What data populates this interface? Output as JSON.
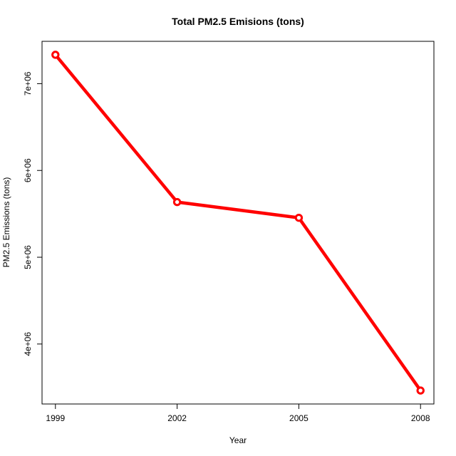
{
  "chart_data": {
    "type": "line",
    "title": "Total PM2.5 Emisions (tons)",
    "xlabel": "Year",
    "ylabel": "PM2.5 Emissions (tons)",
    "x": [
      1999,
      2002,
      2005,
      2008
    ],
    "series": [
      {
        "values": [
          7332967,
          5635780,
          5454703,
          3464206
        ],
        "color": "#ff0000"
      }
    ],
    "xticks": [
      1999,
      2002,
      2005,
      2008
    ],
    "xtick_labels": [
      "1999",
      "2002",
      "2005",
      "2008"
    ],
    "yticks": [
      4000000,
      5000000,
      6000000,
      7000000
    ],
    "ytick_labels": [
      "4e+06",
      "5e+06",
      "6e+06",
      "7e+06"
    ],
    "xlim": [
      1998.67,
      2008.33
    ],
    "ylim": [
      3309000,
      7488000
    ],
    "grid": false,
    "line_color": "#ff0000"
  }
}
